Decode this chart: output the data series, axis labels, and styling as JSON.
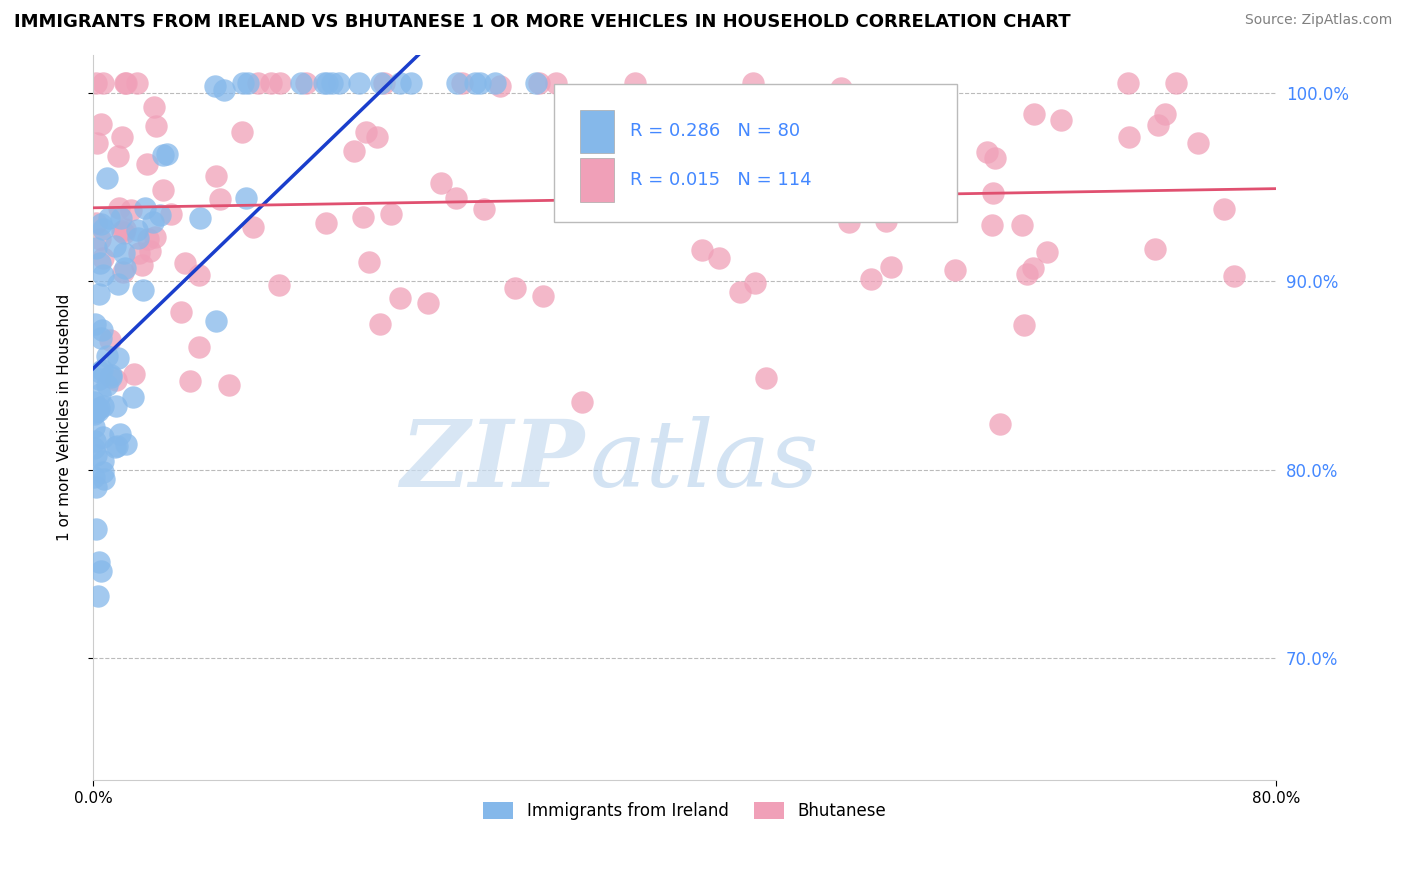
{
  "title": "IMMIGRANTS FROM IRELAND VS BHUTANESE 1 OR MORE VEHICLES IN HOUSEHOLD CORRELATION CHART",
  "source": "Source: ZipAtlas.com",
  "ylabel": "1 or more Vehicles in Household",
  "xlim": [
    0.0,
    0.8
  ],
  "ylim": [
    0.635,
    1.02
  ],
  "yticks": [
    0.7,
    0.8,
    0.9,
    1.0
  ],
  "xticks": [
    0.0,
    0.8
  ],
  "blue_color": "#85B8EA",
  "pink_color": "#F0A0B8",
  "blue_line_color": "#1A3ECC",
  "pink_line_color": "#E05070",
  "legend_blue_label": "Immigrants from Ireland",
  "legend_pink_label": "Bhutanese",
  "R_blue": 0.286,
  "N_blue": 80,
  "R_pink": 0.015,
  "N_pink": 114,
  "watermark_zip": "ZIP",
  "watermark_atlas": "atlas",
  "bg_color": "#FFFFFF",
  "grid_color": "#BBBBBB",
  "right_tick_color": "#4488FF",
  "title_fontsize": 13,
  "source_fontsize": 10
}
